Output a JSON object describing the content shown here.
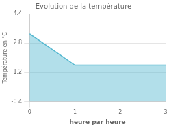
{
  "chart_data": {
    "type": "area",
    "title": "Evolution de la température",
    "xlabel": "heure par heure",
    "ylabel": "Température en °C",
    "x": [
      0,
      1,
      3
    ],
    "values": [
      3.3,
      1.6,
      1.6
    ],
    "color": "#55b8d0",
    "xlim": [
      0,
      3
    ],
    "ylim": [
      -0.4,
      4.4
    ],
    "xticks": [
      0,
      1,
      2,
      3
    ],
    "yticks": [
      -0.4,
      1.2,
      2.8,
      4.4
    ],
    "grid": true
  }
}
